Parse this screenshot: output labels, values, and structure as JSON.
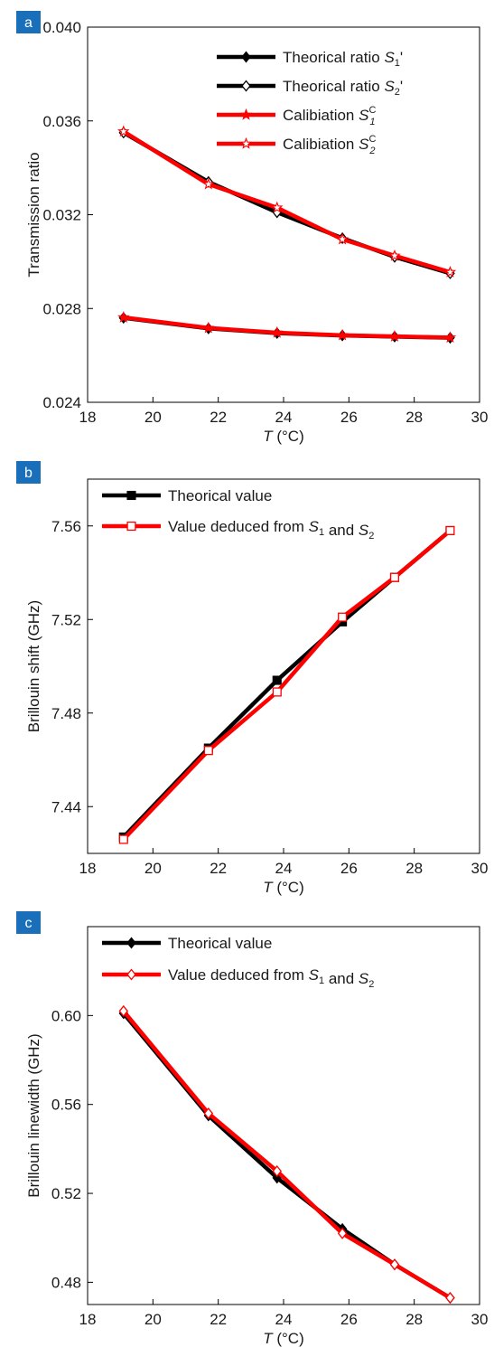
{
  "chart_data": [
    {
      "panel_label": "a",
      "type": "line",
      "xlabel_italic": "T",
      "xlabel_unit": " (°C)",
      "ylabel": "Transmission ratio",
      "xlim": [
        18,
        30
      ],
      "ylim": [
        0.024,
        0.04
      ],
      "xticks": [
        "18",
        "20",
        "22",
        "24",
        "26",
        "28",
        "30"
      ],
      "yticks": [
        "0.024",
        "0.028",
        "0.032",
        "0.036",
        "0.040"
      ],
      "grid": false,
      "legend_placement": "top-right",
      "series": [
        {
          "legend": {
            "prefix": "Theorical ratio ",
            "var": "S",
            "sub": "1",
            "sup": "",
            "suffix": "'"
          },
          "color": "#000000",
          "marker": "diamond-filled",
          "x": [
            19.1,
            21.7,
            23.8,
            25.8,
            27.4,
            29.1
          ],
          "y": [
            0.0276,
            0.02715,
            0.02695,
            0.02685,
            0.0268,
            0.02675
          ]
        },
        {
          "legend": {
            "prefix": "Theorical ratio ",
            "var": "S",
            "sub": "2",
            "sup": "",
            "suffix": "'"
          },
          "color": "#000000",
          "marker": "diamond-open",
          "x": [
            19.1,
            21.7,
            23.8,
            25.8,
            27.4,
            29.1
          ],
          "y": [
            0.0355,
            0.0334,
            0.0321,
            0.031,
            0.0302,
            0.0295
          ]
        },
        {
          "legend": {
            "prefix": "Calibiation ",
            "var": "S",
            "sub": "1",
            "sup": "C",
            "suffix": ""
          },
          "color": "#ff0000",
          "marker": "star-filled",
          "x": [
            19.1,
            21.7,
            23.8,
            25.8,
            27.4,
            29.1
          ],
          "y": [
            0.02762,
            0.02717,
            0.02697,
            0.02686,
            0.02681,
            0.02676
          ]
        },
        {
          "legend": {
            "prefix": "Calibiation ",
            "var": "S",
            "sub": "2",
            "sup": "C",
            "suffix": ""
          },
          "color": "#ff0000",
          "marker": "star-open",
          "x": [
            19.1,
            21.7,
            23.8,
            25.8,
            27.4,
            29.1
          ],
          "y": [
            0.03555,
            0.0333,
            0.0323,
            0.03095,
            0.03025,
            0.02955
          ]
        }
      ]
    },
    {
      "panel_label": "b",
      "type": "line",
      "xlabel_italic": "T",
      "xlabel_unit": " (°C)",
      "ylabel": "Brillouin shift (GHz)",
      "xlim": [
        18,
        30
      ],
      "ylim": [
        7.42,
        7.58
      ],
      "xticks": [
        "18",
        "20",
        "22",
        "24",
        "26",
        "28",
        "30"
      ],
      "yticks": [
        "7.44",
        "7.48",
        "7.52",
        "7.56"
      ],
      "ytick_values": [
        7.44,
        7.48,
        7.52,
        7.56
      ],
      "grid": false,
      "legend_placement": "top-left",
      "series": [
        {
          "legend": {
            "prefix": "Theorical value",
            "var": "",
            "sub": "",
            "sup": "",
            "suffix": ""
          },
          "color": "#000000",
          "marker": "square-filled",
          "x": [
            19.1,
            21.7,
            23.8,
            25.8,
            27.4,
            29.1
          ],
          "y": [
            7.427,
            7.465,
            7.494,
            7.519,
            7.538,
            7.558
          ]
        },
        {
          "legend": {
            "prefix": "Value deduced from ",
            "var": "S",
            "sub": "1",
            "sup": "",
            "suffix": "",
            "mid": " and ",
            "var2": "S",
            "sub2": "2"
          },
          "color": "#ff0000",
          "marker": "square-open",
          "x": [
            19.1,
            21.7,
            23.8,
            25.8,
            27.4,
            29.1
          ],
          "y": [
            7.426,
            7.464,
            7.489,
            7.521,
            7.538,
            7.558
          ]
        }
      ]
    },
    {
      "panel_label": "c",
      "type": "line",
      "xlabel_italic": "T",
      "xlabel_unit": " (°C)",
      "ylabel": "Brillouin linewidth (GHz)",
      "xlim": [
        18,
        30
      ],
      "ylim": [
        0.47,
        0.64
      ],
      "xticks": [
        "18",
        "20",
        "22",
        "24",
        "26",
        "28",
        "30"
      ],
      "yticks": [
        "0.48",
        "0.52",
        "0.56",
        "0.60"
      ],
      "ytick_values": [
        0.48,
        0.52,
        0.56,
        0.6
      ],
      "grid": false,
      "legend_placement": "top-left",
      "series": [
        {
          "legend": {
            "prefix": "Theorical value",
            "var": "",
            "sub": "",
            "sup": "",
            "suffix": ""
          },
          "color": "#000000",
          "marker": "diamond-filled",
          "x": [
            19.1,
            21.7,
            23.8,
            25.8,
            27.4,
            29.1
          ],
          "y": [
            0.601,
            0.555,
            0.527,
            0.504,
            0.488,
            0.473
          ]
        },
        {
          "legend": {
            "prefix": "Value deduced from ",
            "var": "S",
            "sub": "1",
            "sup": "",
            "suffix": "",
            "mid": " and ",
            "var2": "S",
            "sub2": "2"
          },
          "color": "#ff0000",
          "marker": "diamond-open",
          "x": [
            19.1,
            21.7,
            23.8,
            25.8,
            27.4,
            29.1
          ],
          "y": [
            0.602,
            0.556,
            0.53,
            0.502,
            0.488,
            0.473
          ]
        }
      ]
    }
  ],
  "colors": {
    "badge": "#1a6fba",
    "black": "#000000",
    "red": "#ff0000"
  }
}
